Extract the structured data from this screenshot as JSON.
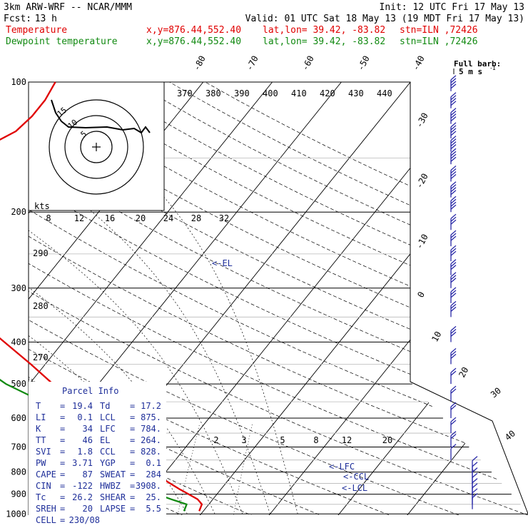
{
  "header": {
    "model": "3km ARW-WRF -- NCAR/MMM",
    "init": "Init: 12 UTC Fri 17 May 13",
    "fcst_label": "Fcst:",
    "fcst_value": "13 h",
    "valid": "Valid: 01 UTC Sat 18 May 13 (19 MDT Fri 17 May 13)",
    "temp_legend": "Temperature",
    "dew_legend": "Dewpoint temperature",
    "xy": "x,y=876.44,552.40",
    "latlon": "lat,lon= 39.42, -83.82",
    "stn": "stn=ILN ,72426"
  },
  "colors": {
    "temperature": "#e00000",
    "dewpoint": "#128a12",
    "header_red": "#e00000",
    "header_green": "#128a12",
    "panel_text": "#1f2f9a",
    "barb": "#2a2aa8"
  },
  "full_barb_label": "Full barb:",
  "full_barb_unit": "5 m s",
  "parcel_info": {
    "title": "Parcel Info",
    "rows": [
      {
        "l1": "T",
        "v1": "19.4",
        "l2": "Td",
        "v2": "17.2"
      },
      {
        "l1": "LI",
        "v1": "0.1",
        "l2": "LCL",
        "v2": "875."
      },
      {
        "l1": "K",
        "v1": "34",
        "l2": "LFC",
        "v2": "784."
      },
      {
        "l1": "TT",
        "v1": "46",
        "l2": "EL",
        "v2": "264."
      },
      {
        "l1": "SVI",
        "v1": "1.8",
        "l2": "CCL",
        "v2": "828."
      },
      {
        "l1": "PW",
        "v1": "3.71",
        "l2": "YGP",
        "v2": "0.1"
      },
      {
        "l1": "CAPE",
        "v1": "87",
        "l2": "SWEAT",
        "v2": "284"
      },
      {
        "l1": "CIN",
        "v1": "-122",
        "l2": "HWBZ",
        "v2": "3908."
      },
      {
        "l1": "Tc",
        "v1": "26.2",
        "l2": "SHEAR",
        "v2": "25."
      },
      {
        "l1": "SREH",
        "v1": "20",
        "l2": "LAPSE",
        "v2": "5.5"
      }
    ],
    "cell_label": "CELL",
    "cell_value": "230/08"
  },
  "hodograph": {
    "kts_label": "kts",
    "ring_labels": [
      "5",
      "10",
      "15"
    ]
  },
  "level_markers": [
    "<-EL",
    "<-LFC",
    "<-CCL",
    "<-LCL"
  ],
  "chart_data": {
    "type": "line",
    "pressure_ticks": [
      "100",
      "200",
      "300",
      "400",
      "500",
      "600",
      "700",
      "800",
      "900",
      "1000"
    ],
    "ylim": [
      1050,
      100
    ],
    "temperature_axis_labels": [
      "-80",
      "-70",
      "-60",
      "-50",
      "-40",
      "-30",
      "-20",
      "-10",
      "0",
      "10",
      "20",
      "30",
      "40"
    ],
    "theta_labels": [
      "370",
      "380",
      "390",
      "400",
      "410",
      "420",
      "430",
      "440"
    ],
    "dry_adiabat_labels": [
      "290",
      "280",
      "270"
    ],
    "mixing_ratio_labels": [
      "2",
      "3",
      "5",
      "8",
      "12",
      "20"
    ],
    "inner_scale_labels": [
      "8",
      "12",
      "16",
      "20",
      "24",
      "28",
      "32"
    ],
    "series": [
      {
        "name": "Temperature",
        "pressure": [
          985,
          950,
          925,
          900,
          875,
          850,
          825,
          800,
          784,
          750,
          700,
          650,
          600,
          550,
          500,
          450,
          400,
          350,
          300,
          264,
          250,
          225,
          200,
          180,
          165,
          150,
          140,
          130,
          120,
          110,
          100
        ],
        "values": [
          19.4,
          19.0,
          17.8,
          15.9,
          13.9,
          12.0,
          10.0,
          8.5,
          7.6,
          5.2,
          1.6,
          -2.4,
          -6.6,
          -11.3,
          -16.6,
          -22.1,
          -28.5,
          -35.7,
          -43.8,
          -50.4,
          -53.8,
          -57.9,
          -62.4,
          -62.3,
          -59.8,
          -56.2,
          -53.6,
          -51.4,
          -50.8,
          -50.8,
          -51.4
        ]
      },
      {
        "name": "Dewpoint temperature",
        "pressure": [
          985,
          950,
          925,
          900,
          875,
          850,
          825,
          800,
          750,
          700,
          650,
          600,
          550,
          500,
          450,
          400,
          350,
          300,
          275,
          250,
          225,
          200,
          175,
          150,
          135,
          120,
          110,
          100
        ],
        "values": [
          17.2,
          16.8,
          14.0,
          11.3,
          10.5,
          10.7,
          8.5,
          6.5,
          2.8,
          -1.8,
          -6.1,
          -10.1,
          -16.0,
          -23.4,
          -29.8,
          -35.2,
          -42.8,
          -56.9,
          -59.1,
          -60.4,
          -63.3,
          -67.1,
          -77.1,
          -88.6,
          -90.4,
          -89.6,
          -91.6,
          -93.6
        ]
      }
    ],
    "wind_barbs": [
      {
        "p": 975,
        "speed_ms": 5
      },
      {
        "p": 950,
        "speed_ms": 5
      },
      {
        "p": 925,
        "speed_ms": 5
      },
      {
        "p": 900,
        "speed_ms": 5
      },
      {
        "p": 875,
        "speed_ms": 5
      },
      {
        "p": 850,
        "speed_ms": 5
      },
      {
        "p": 825,
        "speed_ms": 5
      },
      {
        "p": 800,
        "speed_ms": 5
      },
      {
        "p": 750,
        "speed_ms": 5
      },
      {
        "p": 700,
        "speed_ms": 10
      },
      {
        "p": 650,
        "speed_ms": 10
      },
      {
        "p": 600,
        "speed_ms": 10
      },
      {
        "p": 550,
        "speed_ms": 10
      },
      {
        "p": 500,
        "speed_ms": 10
      },
      {
        "p": 450,
        "speed_ms": 15
      },
      {
        "p": 400,
        "speed_ms": 15
      },
      {
        "p": 350,
        "speed_ms": 15
      },
      {
        "p": 325,
        "speed_ms": 15
      },
      {
        "p": 300,
        "speed_ms": 15
      },
      {
        "p": 280,
        "speed_ms": 15
      },
      {
        "p": 260,
        "speed_ms": 15
      },
      {
        "p": 240,
        "speed_ms": 15
      },
      {
        "p": 220,
        "speed_ms": 15
      },
      {
        "p": 200,
        "speed_ms": 20
      },
      {
        "p": 185,
        "speed_ms": 20
      },
      {
        "p": 170,
        "speed_ms": 20
      },
      {
        "p": 155,
        "speed_ms": 20
      },
      {
        "p": 145,
        "speed_ms": 20
      },
      {
        "p": 135,
        "speed_ms": 20
      },
      {
        "p": 125,
        "speed_ms": 20
      },
      {
        "p": 115,
        "speed_ms": 20
      },
      {
        "p": 105,
        "speed_ms": 20
      }
    ]
  }
}
